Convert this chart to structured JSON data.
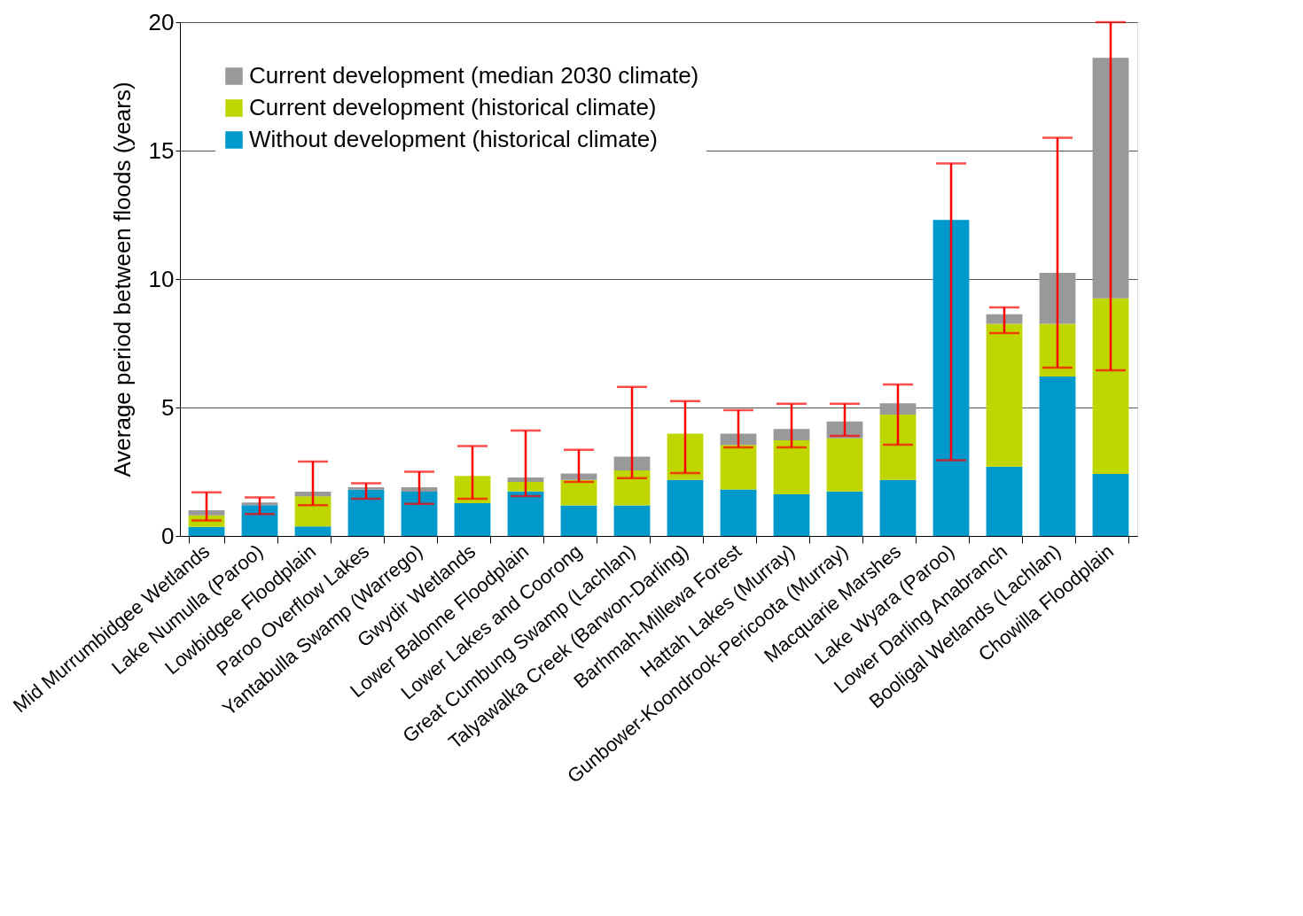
{
  "chart_data": {
    "type": "bar",
    "stacked": true,
    "ylabel": "Average period between floods (years)",
    "categories": [
      "Mid Murrumbidgee Wetlands",
      "Lake Numulla (Paroo)",
      "Lowbidgee Floodplain",
      "Paroo Overflow Lakes",
      "Yantabulla Swamp (Warrego)",
      "Gwydir Wetlands",
      "Lower Balonne Floodplain",
      "Lower Lakes and Coorong",
      "Great Cumbung Swamp (Lachlan)",
      "Talyawalka Creek (Barwon-Darling)",
      "Barhmah-Millewa Forest",
      "Hattah Lakes (Murray)",
      "Gunbower-Koondrook-Pericoota (Murray)",
      "Macquarie Marshes",
      "Lake Wyara (Paroo)",
      "Lower Darling Anabranch",
      "Booligal Wetlands (Lachlan)",
      "Chowilla Floodplain"
    ],
    "series": [
      {
        "name": "Without development (historical climate)",
        "color": "#0099cc",
        "values": [
          0.35,
          1.2,
          0.37,
          1.8,
          1.72,
          1.28,
          1.73,
          1.19,
          1.19,
          2.18,
          1.81,
          1.62,
          1.73,
          2.18,
          12.3,
          2.7,
          6.21,
          2.41
        ]
      },
      {
        "name": "Current development (historical climate)",
        "color": "#bfd600",
        "values": [
          0.45,
          0,
          1.17,
          0,
          0,
          1.06,
          0.37,
          0.99,
          1.36,
          1.8,
          1.73,
          2.1,
          2.07,
          2.54,
          0,
          5.56,
          2.05,
          6.84
        ]
      },
      {
        "name": "Current development (median 2030 climate)",
        "color": "#999999",
        "values": [
          0.2,
          0.1,
          0.18,
          0.1,
          0.18,
          0,
          0.18,
          0.25,
          0.54,
          0,
          0.44,
          0.44,
          0.66,
          0.44,
          0,
          0.37,
          1.98,
          9.36
        ],
        "errors": [
          [
            0.6,
            1.7
          ],
          [
            0.85,
            1.5
          ],
          [
            1.2,
            2.9
          ],
          [
            1.45,
            2.05
          ],
          [
            1.25,
            2.5
          ],
          [
            1.45,
            3.5
          ],
          [
            1.55,
            4.1
          ],
          [
            2.1,
            3.35
          ],
          [
            2.25,
            5.8
          ],
          [
            2.45,
            5.25
          ],
          [
            3.45,
            4.9
          ],
          [
            3.45,
            5.15
          ],
          [
            3.9,
            5.15
          ],
          [
            3.55,
            5.9
          ],
          [
            2.95,
            14.5
          ],
          [
            7.9,
            8.9
          ],
          [
            6.55,
            15.5
          ],
          [
            6.45,
            20
          ]
        ]
      }
    ],
    "ylim": [
      0,
      20
    ],
    "yticks": [
      0,
      5,
      10,
      15,
      20
    ],
    "grid": "y",
    "legend": "top left"
  }
}
